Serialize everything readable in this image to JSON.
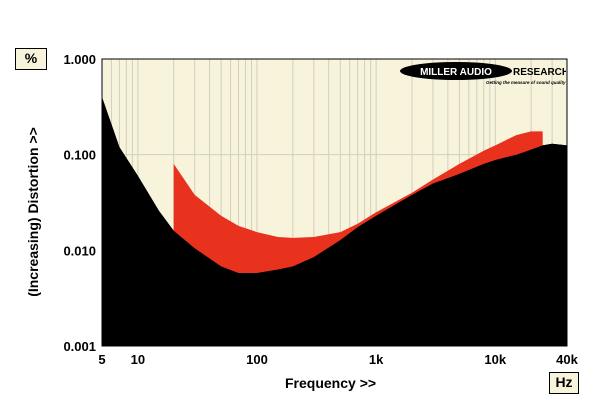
{
  "colors": {
    "background": "#f8f4dc",
    "grid": "#d2cec0",
    "lower_fill": "#000000",
    "upper_fill": "#e8321e"
  },
  "logo": {
    "name": "MILLER AUDIO RESEARCH",
    "tagline": "Getting the measure of sound quality"
  },
  "chart_data": {
    "type": "area",
    "xlabel": "Frequency >>",
    "ylabel": "(Increasing) Distortion >>",
    "x_unit": "Hz",
    "y_unit": "%",
    "x_scale": "log",
    "y_scale": "log",
    "xlim": [
      5,
      40000
    ],
    "ylim": [
      0.001,
      1.0
    ],
    "x_ticks": [
      {
        "value": 5,
        "label": "5"
      },
      {
        "value": 10,
        "label": "10"
      },
      {
        "value": 100,
        "label": "100"
      },
      {
        "value": 1000,
        "label": "1k"
      },
      {
        "value": 10000,
        "label": "10k"
      },
      {
        "value": 40000,
        "label": "40k"
      }
    ],
    "y_ticks": [
      {
        "value": 1.0,
        "label": "1.000"
      },
      {
        "value": 0.1,
        "label": "0.100"
      },
      {
        "value": 0.01,
        "label": "0.010"
      },
      {
        "value": 0.001,
        "label": "0.001"
      }
    ],
    "grid": true,
    "series": [
      {
        "color": "#000000",
        "points": [
          [
            5,
            0.4
          ],
          [
            7,
            0.12
          ],
          [
            10,
            0.06
          ],
          [
            15,
            0.026
          ],
          [
            20,
            0.016
          ],
          [
            30,
            0.0105
          ],
          [
            50,
            0.0068
          ],
          [
            70,
            0.0058
          ],
          [
            100,
            0.0058
          ],
          [
            150,
            0.0063
          ],
          [
            200,
            0.0068
          ],
          [
            300,
            0.0085
          ],
          [
            500,
            0.0128
          ],
          [
            700,
            0.0175
          ],
          [
            1000,
            0.023
          ],
          [
            2000,
            0.038
          ],
          [
            3000,
            0.05
          ],
          [
            5000,
            0.063
          ],
          [
            8000,
            0.08
          ],
          [
            10000,
            0.088
          ],
          [
            15000,
            0.1
          ],
          [
            20000,
            0.113
          ],
          [
            25000,
            0.125
          ],
          [
            30000,
            0.13
          ],
          [
            40000,
            0.125
          ]
        ]
      },
      {
        "color": "#e8321e",
        "points": [
          [
            20,
            0.08
          ],
          [
            30,
            0.038
          ],
          [
            50,
            0.023
          ],
          [
            70,
            0.018
          ],
          [
            100,
            0.0155
          ],
          [
            150,
            0.0138
          ],
          [
            200,
            0.0135
          ],
          [
            300,
            0.0138
          ],
          [
            500,
            0.0155
          ],
          [
            700,
            0.019
          ],
          [
            1000,
            0.025
          ],
          [
            2000,
            0.04
          ],
          [
            3000,
            0.055
          ],
          [
            5000,
            0.08
          ],
          [
            8000,
            0.11
          ],
          [
            10000,
            0.125
          ],
          [
            15000,
            0.16
          ],
          [
            20000,
            0.175
          ],
          [
            25000,
            0.175
          ]
        ]
      }
    ]
  }
}
